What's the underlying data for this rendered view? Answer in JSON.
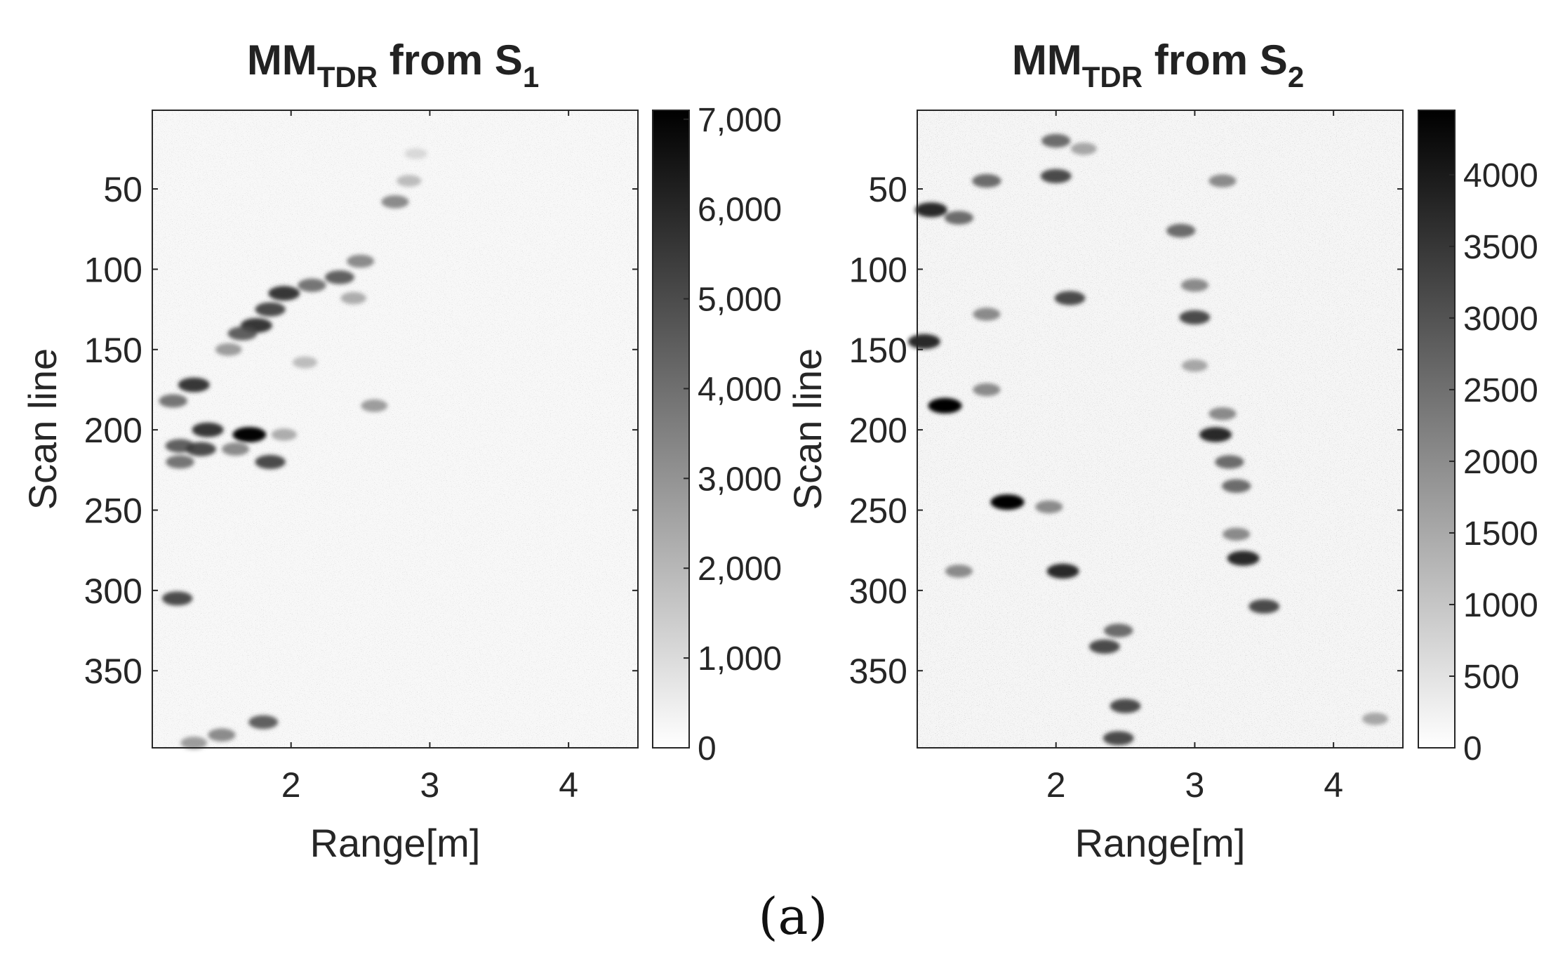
{
  "chart_data": [
    {
      "type": "heatmap",
      "title": {
        "main": "MM",
        "sub1": "TDR",
        "mid": " from S",
        "sub2": "1"
      },
      "xlabel": "Range[m]",
      "ylabel": "Scan line",
      "xlim": [
        1.0,
        4.5
      ],
      "ylim": [
        1,
        398
      ],
      "y_reversed": true,
      "xticks": [
        {
          "v": 2,
          "label": "2"
        },
        {
          "v": 3,
          "label": "3"
        },
        {
          "v": 4,
          "label": "4"
        }
      ],
      "yticks": [
        {
          "v": 50,
          "label": "50"
        },
        {
          "v": 100,
          "label": "100"
        },
        {
          "v": 150,
          "label": "150"
        },
        {
          "v": 200,
          "label": "200"
        },
        {
          "v": 250,
          "label": "250"
        },
        {
          "v": 300,
          "label": "300"
        },
        {
          "v": 350,
          "label": "350"
        }
      ],
      "colorbar": {
        "min": 0,
        "max": 7100,
        "colormap": "gray-reversed",
        "ticks": [
          {
            "v": 0,
            "label": "0"
          },
          {
            "v": 1000,
            "label": "1,000"
          },
          {
            "v": 2000,
            "label": "2,000"
          },
          {
            "v": 3000,
            "label": "3,000"
          },
          {
            "v": 4000,
            "label": "4,000"
          },
          {
            "v": 5000,
            "label": "5,000"
          },
          {
            "v": 6000,
            "label": "6,000"
          },
          {
            "v": 7000,
            "label": "7,000"
          }
        ]
      },
      "features": [
        {
          "x": 2.75,
          "y": 58,
          "value": 4000
        },
        {
          "x": 2.85,
          "y": 45,
          "value": 2500
        },
        {
          "x": 2.5,
          "y": 95,
          "value": 4000
        },
        {
          "x": 2.35,
          "y": 105,
          "value": 5000
        },
        {
          "x": 2.15,
          "y": 110,
          "value": 4500
        },
        {
          "x": 1.95,
          "y": 115,
          "value": 6000
        },
        {
          "x": 1.85,
          "y": 125,
          "value": 5500
        },
        {
          "x": 1.75,
          "y": 135,
          "value": 6000
        },
        {
          "x": 1.65,
          "y": 140,
          "value": 5000
        },
        {
          "x": 1.55,
          "y": 150,
          "value": 3500
        },
        {
          "x": 2.45,
          "y": 118,
          "value": 3000
        },
        {
          "x": 2.1,
          "y": 158,
          "value": 2500
        },
        {
          "x": 1.3,
          "y": 172,
          "value": 6000
        },
        {
          "x": 1.15,
          "y": 182,
          "value": 4500
        },
        {
          "x": 2.6,
          "y": 185,
          "value": 3500
        },
        {
          "x": 1.4,
          "y": 200,
          "value": 6000
        },
        {
          "x": 1.7,
          "y": 203,
          "value": 7000
        },
        {
          "x": 1.95,
          "y": 203,
          "value": 3000
        },
        {
          "x": 1.2,
          "y": 210,
          "value": 5000
        },
        {
          "x": 1.35,
          "y": 212,
          "value": 5500
        },
        {
          "x": 1.6,
          "y": 212,
          "value": 4000
        },
        {
          "x": 1.85,
          "y": 220,
          "value": 5500
        },
        {
          "x": 1.2,
          "y": 220,
          "value": 4500
        },
        {
          "x": 1.18,
          "y": 305,
          "value": 5500
        },
        {
          "x": 1.8,
          "y": 382,
          "value": 5000
        },
        {
          "x": 1.5,
          "y": 390,
          "value": 4000
        },
        {
          "x": 1.3,
          "y": 395,
          "value": 3500
        },
        {
          "x": 2.9,
          "y": 28,
          "value": 1500
        }
      ]
    },
    {
      "type": "heatmap",
      "title": {
        "main": "MM",
        "sub1": "TDR",
        "mid": " from S",
        "sub2": "2"
      },
      "xlabel": "Range[m]",
      "ylabel": "Scan line",
      "xlim": [
        1.0,
        4.5
      ],
      "ylim": [
        1,
        398
      ],
      "y_reversed": true,
      "xticks": [
        {
          "v": 2,
          "label": "2"
        },
        {
          "v": 3,
          "label": "3"
        },
        {
          "v": 4,
          "label": "4"
        }
      ],
      "yticks": [
        {
          "v": 50,
          "label": "50"
        },
        {
          "v": 100,
          "label": "100"
        },
        {
          "v": 150,
          "label": "150"
        },
        {
          "v": 200,
          "label": "200"
        },
        {
          "v": 250,
          "label": "250"
        },
        {
          "v": 300,
          "label": "300"
        },
        {
          "v": 350,
          "label": "350"
        }
      ],
      "colorbar": {
        "min": 0,
        "max": 4450,
        "colormap": "gray-reversed",
        "ticks": [
          {
            "v": 0,
            "label": "0"
          },
          {
            "v": 500,
            "label": "500"
          },
          {
            "v": 1000,
            "label": "1000"
          },
          {
            "v": 1500,
            "label": "1500"
          },
          {
            "v": 2000,
            "label": "2000"
          },
          {
            "v": 2500,
            "label": "2500"
          },
          {
            "v": 3000,
            "label": "3000"
          },
          {
            "v": 3500,
            "label": "3500"
          },
          {
            "v": 4000,
            "label": "4000"
          }
        ]
      },
      "features": [
        {
          "x": 2.0,
          "y": 20,
          "value": 3000
        },
        {
          "x": 2.2,
          "y": 25,
          "value": 2000
        },
        {
          "x": 1.5,
          "y": 45,
          "value": 3000
        },
        {
          "x": 2.0,
          "y": 42,
          "value": 3500
        },
        {
          "x": 1.1,
          "y": 63,
          "value": 4000
        },
        {
          "x": 1.3,
          "y": 68,
          "value": 3000
        },
        {
          "x": 2.9,
          "y": 76,
          "value": 3000
        },
        {
          "x": 3.2,
          "y": 45,
          "value": 2500
        },
        {
          "x": 2.1,
          "y": 118,
          "value": 3500
        },
        {
          "x": 1.5,
          "y": 128,
          "value": 2500
        },
        {
          "x": 3.0,
          "y": 110,
          "value": 2500
        },
        {
          "x": 3.0,
          "y": 130,
          "value": 3500
        },
        {
          "x": 1.05,
          "y": 145,
          "value": 4000
        },
        {
          "x": 3.0,
          "y": 160,
          "value": 2000
        },
        {
          "x": 1.2,
          "y": 185,
          "value": 4500
        },
        {
          "x": 1.5,
          "y": 175,
          "value": 2500
        },
        {
          "x": 3.15,
          "y": 203,
          "value": 4000
        },
        {
          "x": 3.2,
          "y": 190,
          "value": 2500
        },
        {
          "x": 3.25,
          "y": 220,
          "value": 3000
        },
        {
          "x": 3.3,
          "y": 235,
          "value": 3000
        },
        {
          "x": 1.65,
          "y": 245,
          "value": 4500
        },
        {
          "x": 1.95,
          "y": 248,
          "value": 2500
        },
        {
          "x": 3.3,
          "y": 265,
          "value": 2500
        },
        {
          "x": 3.35,
          "y": 280,
          "value": 4000
        },
        {
          "x": 2.05,
          "y": 288,
          "value": 4000
        },
        {
          "x": 1.3,
          "y": 288,
          "value": 2500
        },
        {
          "x": 3.5,
          "y": 310,
          "value": 3500
        },
        {
          "x": 2.45,
          "y": 325,
          "value": 3000
        },
        {
          "x": 2.35,
          "y": 335,
          "value": 3500
        },
        {
          "x": 2.5,
          "y": 372,
          "value": 3500
        },
        {
          "x": 2.45,
          "y": 392,
          "value": 3500
        },
        {
          "x": 4.3,
          "y": 380,
          "value": 2000
        }
      ]
    }
  ],
  "caption": "(a)"
}
